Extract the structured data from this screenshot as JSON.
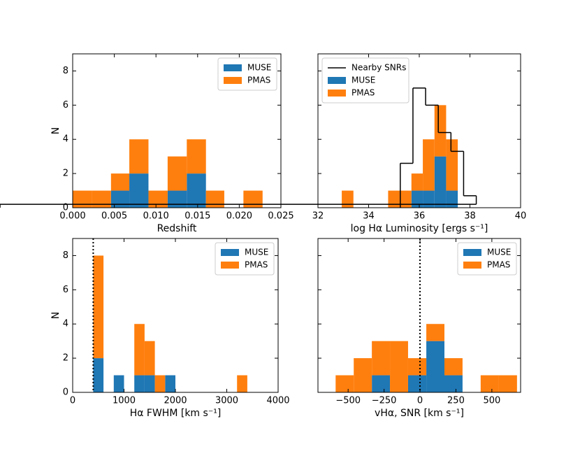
{
  "chart_data": [
    {
      "type": "histogram",
      "stacked": true,
      "xlabel": "Redshift",
      "ylabel": "N",
      "bins": [
        0,
        0.0023,
        0.0046,
        0.0068,
        0.0091,
        0.0114,
        0.0137,
        0.016,
        0.0182,
        0.0205,
        0.0228
      ],
      "series": [
        {
          "name": "MUSE",
          "color": "#1f77b4",
          "values": [
            0,
            0,
            1,
            2,
            0,
            1,
            2,
            0,
            0,
            0
          ]
        },
        {
          "name": "PMAS",
          "color": "#ff7f0e",
          "values": [
            1,
            1,
            1,
            2,
            1,
            2,
            2,
            1,
            0,
            1
          ]
        }
      ],
      "xlim": [
        0,
        0.025
      ],
      "xticks": [
        {
          "value": 0,
          "label": "0.000"
        },
        {
          "value": 0.005,
          "label": "0.005"
        },
        {
          "value": 0.01,
          "label": "0.010"
        },
        {
          "value": 0.015,
          "label": "0.015"
        },
        {
          "value": 0.02,
          "label": "0.020"
        },
        {
          "value": 0.025,
          "label": "0.025"
        }
      ],
      "ylim": [
        0,
        9
      ],
      "yticks": [
        0,
        2,
        4,
        6,
        8
      ],
      "yticklabels": true,
      "legend": "upper right"
    },
    {
      "type": "histogram",
      "stacked": true,
      "xlabel": "log Hα Luminosity [ergs s⁻¹]",
      "bins": [
        32.94,
        33.4,
        33.85,
        34.31,
        34.77,
        35.23,
        35.69,
        36.14,
        36.6,
        37.06,
        37.52
      ],
      "series": [
        {
          "name": "MUSE",
          "color": "#1f77b4",
          "values": [
            0,
            0,
            0,
            0,
            0,
            0,
            1,
            1,
            3,
            1
          ]
        },
        {
          "name": "PMAS",
          "color": "#ff7f0e",
          "values": [
            1,
            0,
            0,
            0,
            1,
            1,
            1,
            3,
            3,
            3
          ]
        }
      ],
      "lines": [
        {
          "name": "Nearby SNRs",
          "color": "#000000",
          "bins": [
            35.25,
            35.75,
            36.25,
            36.75,
            37.25,
            37.75,
            38.25
          ],
          "values": [
            2.6,
            7,
            6,
            4.4,
            3.3,
            0.7,
            0.2
          ]
        }
      ],
      "xlim": [
        32,
        40
      ],
      "xticks": [
        32,
        34,
        36,
        38,
        40
      ],
      "ylim": [
        0,
        9
      ],
      "yticks": [
        0,
        2,
        4,
        6,
        8
      ],
      "yticklabels": false,
      "legend": "upper left"
    },
    {
      "type": "histogram",
      "stacked": true,
      "xlabel": "Hα FWHM [km s⁻¹]",
      "ylabel": "N",
      "bins": [
        400,
        600,
        800,
        1000,
        1200,
        1400,
        1600,
        1800,
        2000,
        2200,
        2400,
        2600,
        2800,
        3000,
        3200,
        3400
      ],
      "series": [
        {
          "name": "MUSE",
          "color": "#1f77b4",
          "values": [
            2,
            0,
            1,
            0,
            1,
            1,
            0,
            1,
            0,
            0,
            0,
            0,
            0,
            0,
            0
          ]
        },
        {
          "name": "PMAS",
          "color": "#ff7f0e",
          "values": [
            6,
            0,
            0,
            0,
            3,
            2,
            1,
            0,
            0,
            0,
            0,
            0,
            0,
            0,
            1
          ]
        }
      ],
      "vlines": [
        {
          "x": 400,
          "color": "#000000",
          "style": "dotted"
        }
      ],
      "xlim": [
        0,
        4000
      ],
      "xticks": [
        0,
        1000,
        2000,
        3000,
        4000
      ],
      "ylim": [
        0,
        9
      ],
      "yticks": [
        0,
        2,
        4,
        6,
        8
      ],
      "yticklabels": true,
      "legend": "upper right"
    },
    {
      "type": "histogram",
      "stacked": true,
      "xlabel": "vHα, SNR [km s⁻¹]",
      "bins": [
        -587,
        -461,
        -335,
        -209,
        -83,
        44,
        170,
        296,
        422,
        549,
        675
      ],
      "series": [
        {
          "name": "MUSE",
          "color": "#1f77b4",
          "values": [
            0,
            0,
            1,
            0,
            1,
            3,
            1,
            0,
            0,
            0
          ]
        },
        {
          "name": "PMAS",
          "color": "#ff7f0e",
          "values": [
            1,
            2,
            2,
            3,
            1,
            1,
            1,
            0,
            1,
            1
          ]
        }
      ],
      "vlines": [
        {
          "x": 0,
          "color": "#000000",
          "style": "dotted"
        }
      ],
      "xlim": [
        -710,
        700
      ],
      "xticks": [
        {
          "value": -500,
          "label": "−500"
        },
        {
          "value": -250,
          "label": "−250"
        },
        0,
        250,
        500
      ],
      "ylim": [
        0,
        9
      ],
      "yticks": [
        0,
        2,
        4,
        6,
        8
      ],
      "yticklabels": false,
      "legend": "upper right"
    }
  ]
}
